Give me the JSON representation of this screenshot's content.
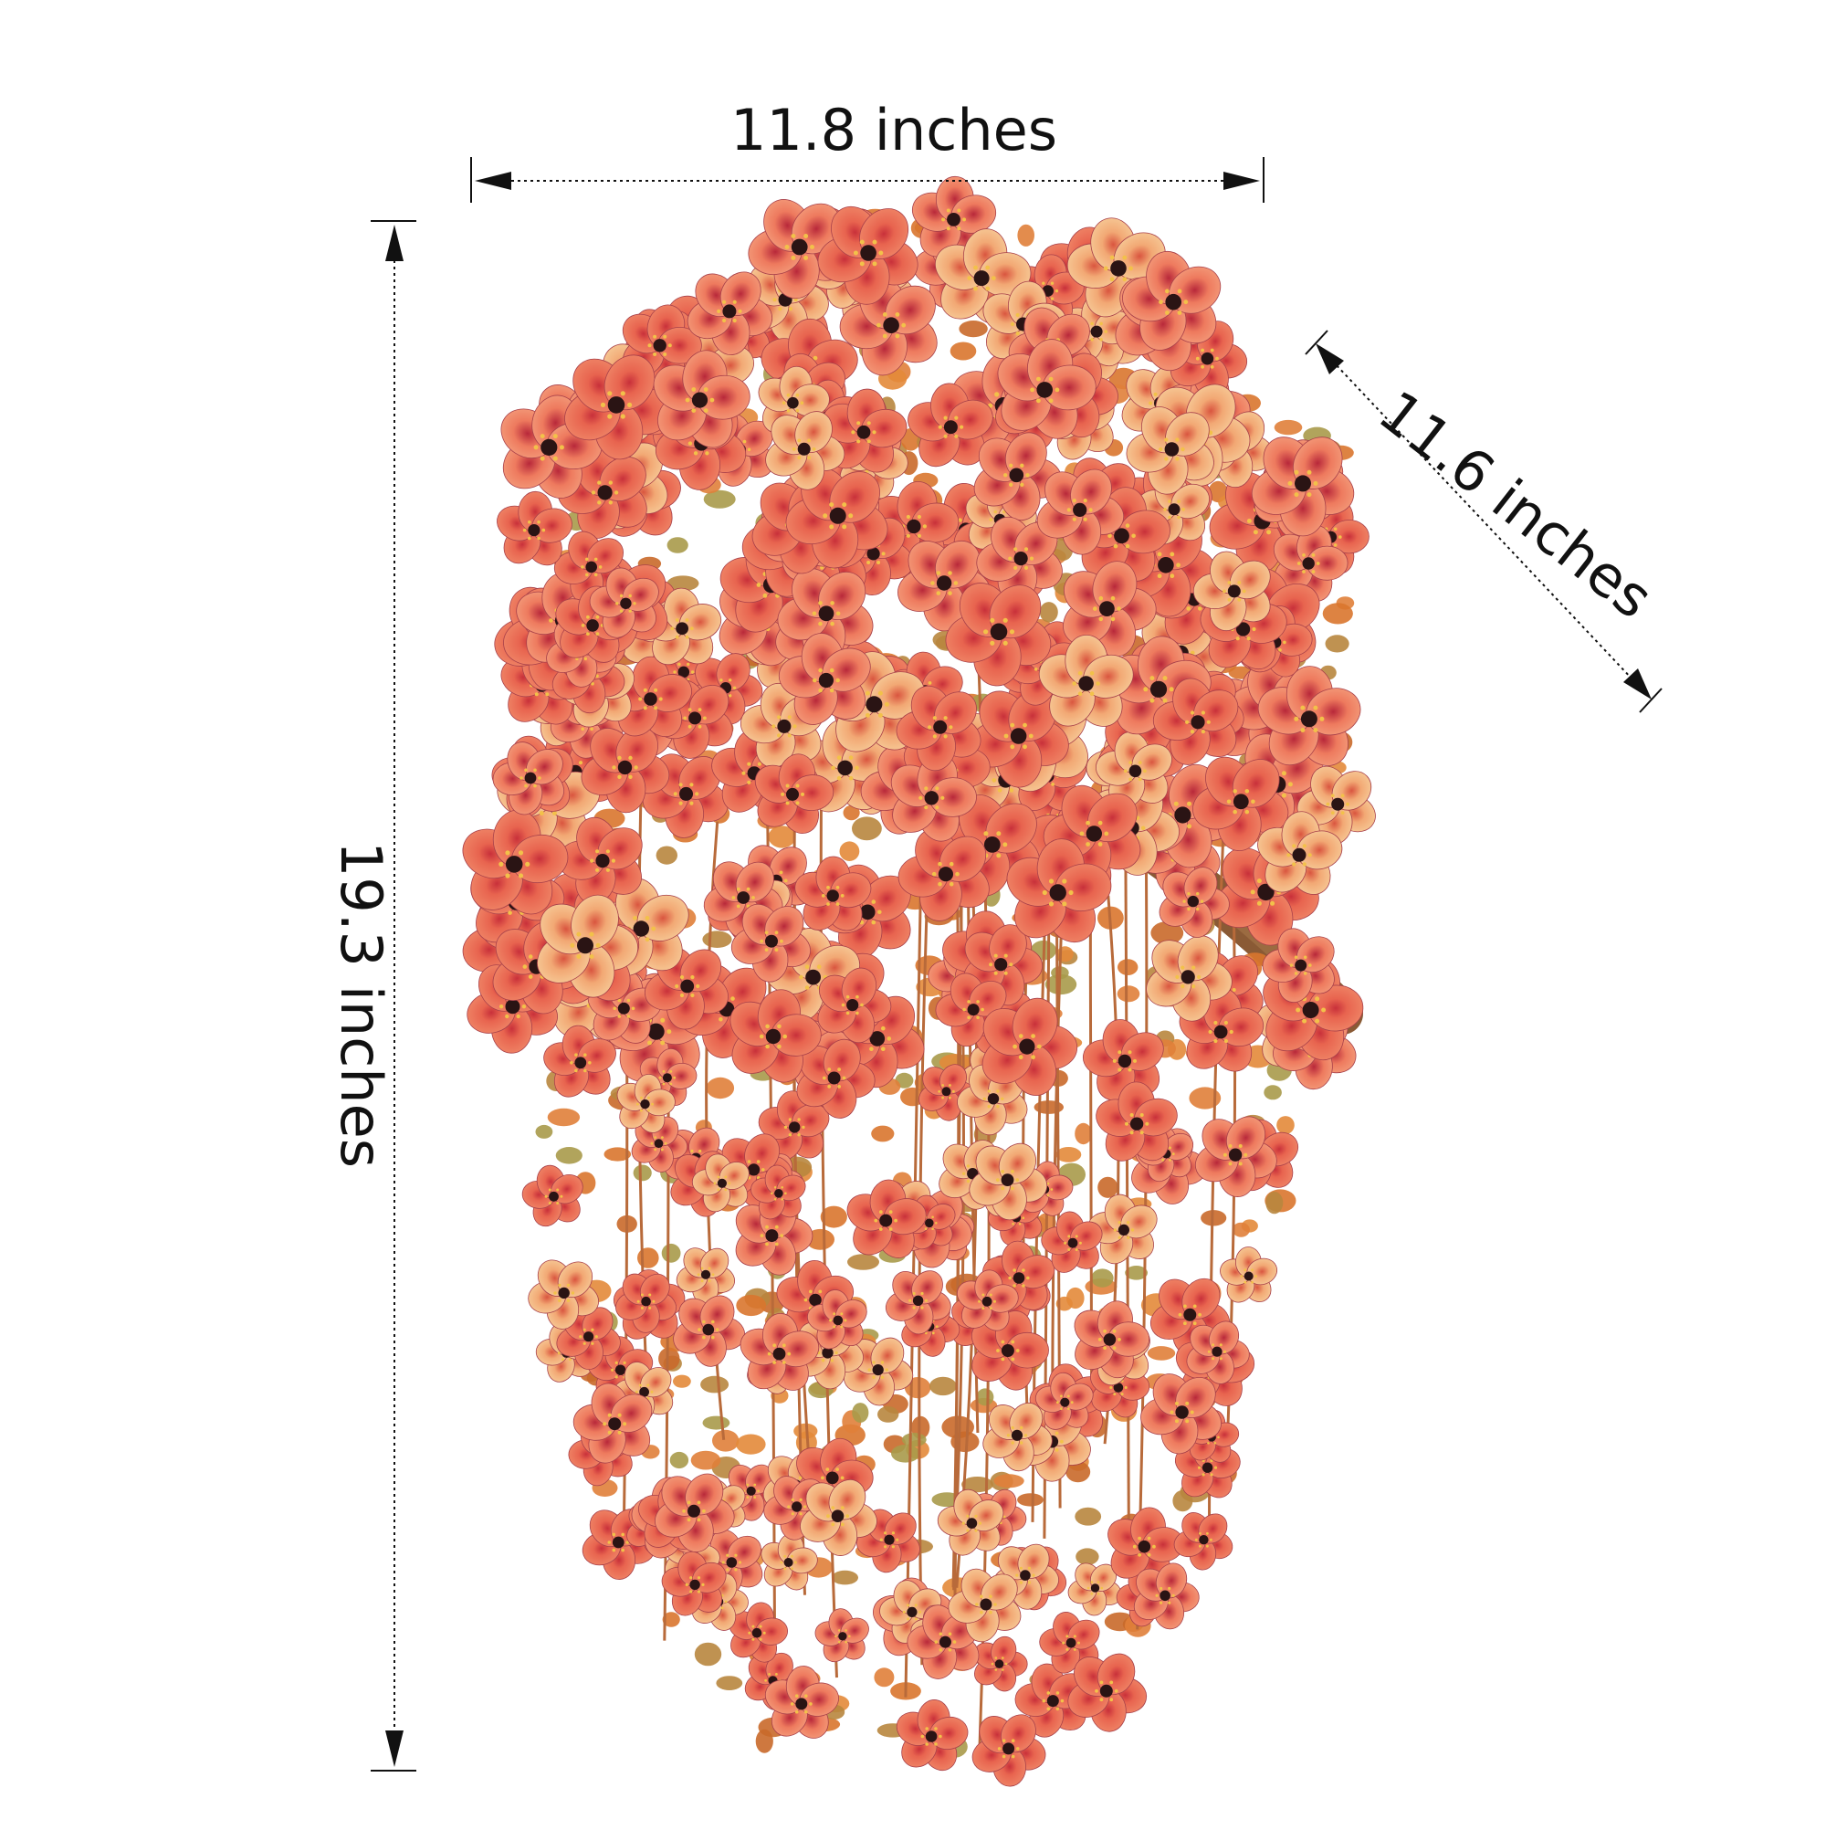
{
  "product_image": {
    "subject": "hanging artificial flower bush",
    "colors": {
      "background": "#ffffff",
      "petal_coral": "#e8644f",
      "petal_peach": "#f2b27a",
      "leaf_orange": "#d9762e",
      "leaf_olive": "#a89a4a",
      "stem_brown": "#8a5a35",
      "dimension_lines": "#111111"
    }
  },
  "dimensions": {
    "width": "11.8 inches",
    "height": "19.3 inches",
    "depth": "11.6 inches"
  }
}
